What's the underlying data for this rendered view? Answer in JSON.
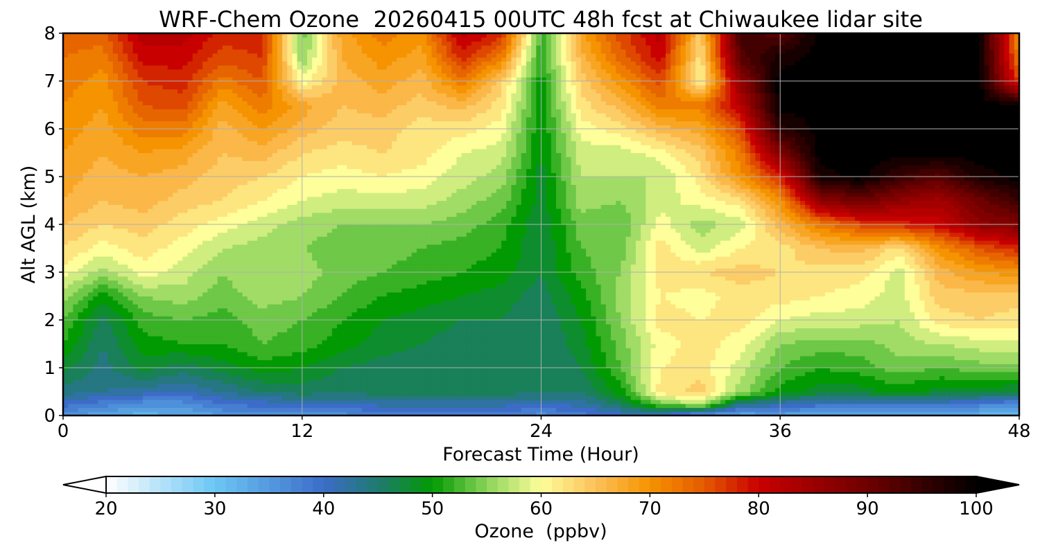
{
  "chart_data": {
    "type": "heatmap",
    "subtype": "filled-contour",
    "title": "WRF-Chem Ozone  20260415 00UTC 48h fcst at Chiwaukee lidar site",
    "xlabel": "Forecast Time (Hour)",
    "ylabel": "Alt AGL (km)",
    "xlim": [
      0,
      48
    ],
    "ylim": [
      0,
      8
    ],
    "xticks": [
      "0",
      "12",
      "24",
      "36",
      "48"
    ],
    "yticks": [
      "0",
      "1",
      "2",
      "3",
      "4",
      "5",
      "6",
      "7",
      "8"
    ],
    "grid": true,
    "colorbar": {
      "label": "Ozone  (ppbv)",
      "range": [
        20,
        100
      ],
      "ticks": [
        "20",
        "30",
        "40",
        "50",
        "60",
        "70",
        "80",
        "90",
        "100"
      ],
      "extend": "both",
      "stops": [
        {
          "v": 20,
          "c": "#ffffff"
        },
        {
          "v": 30,
          "c": "#6cc6f4"
        },
        {
          "v": 40,
          "c": "#3c6cc8"
        },
        {
          "v": 45,
          "c": "#1f7a6f"
        },
        {
          "v": 50,
          "c": "#029a02"
        },
        {
          "v": 55,
          "c": "#8ad45a"
        },
        {
          "v": 60,
          "c": "#fefe9a"
        },
        {
          "v": 65,
          "c": "#fcc05a"
        },
        {
          "v": 70,
          "c": "#f59300"
        },
        {
          "v": 75,
          "c": "#e45a00"
        },
        {
          "v": 80,
          "c": "#c80000"
        },
        {
          "v": 90,
          "c": "#6e0000"
        },
        {
          "v": 100,
          "c": "#000000"
        }
      ]
    },
    "x": [
      0,
      2,
      4,
      6,
      8,
      10,
      12,
      14,
      16,
      18,
      20,
      22,
      24,
      26,
      28,
      30,
      32,
      34,
      36,
      38,
      40,
      42,
      44,
      46,
      48
    ],
    "y": [
      0,
      0.25,
      0.5,
      1,
      1.5,
      2,
      2.5,
      3,
      3.5,
      4,
      4.5,
      5,
      5.5,
      6,
      6.5,
      7,
      7.5,
      8
    ],
    "ozone_ppbv": [
      [
        36,
        33,
        32,
        33,
        35,
        36,
        36,
        36,
        37,
        37,
        37,
        37,
        36,
        38,
        40,
        40,
        34,
        33,
        34,
        32,
        32,
        33,
        33,
        32,
        31
      ],
      [
        40,
        38,
        36,
        36,
        39,
        40,
        41,
        41,
        42,
        42,
        42,
        42,
        41,
        42,
        46,
        54,
        58,
        44,
        42,
        40,
        40,
        40,
        40,
        38,
        37
      ],
      [
        44,
        43,
        42,
        41,
        43,
        45,
        46,
        45,
        46,
        46,
        46,
        46,
        45,
        45,
        50,
        62,
        64,
        56,
        50,
        48,
        48,
        50,
        48,
        48,
        47
      ],
      [
        48,
        44,
        48,
        46,
        48,
        50,
        49,
        47,
        46,
        46,
        45,
        45,
        45,
        47,
        53,
        61,
        62,
        58,
        53,
        51,
        52,
        54,
        53,
        54,
        54
      ],
      [
        51,
        45,
        50,
        51,
        51,
        53,
        52,
        50,
        48,
        47,
        46,
        46,
        45,
        48,
        54,
        60,
        62,
        60,
        55,
        54,
        54,
        56,
        57,
        58,
        58
      ],
      [
        53,
        46,
        52,
        53,
        52,
        54,
        53,
        51,
        49,
        48,
        47,
        47,
        45,
        49,
        55,
        62,
        61,
        62,
        59,
        58,
        58,
        57,
        62,
        63,
        62
      ],
      [
        56,
        50,
        55,
        56,
        54,
        56,
        55,
        53,
        51,
        50,
        49,
        48,
        46,
        50,
        56,
        61,
        60,
        62,
        62,
        61,
        60,
        58,
        64,
        64,
        64
      ],
      [
        60,
        56,
        60,
        58,
        55,
        57,
        56,
        54,
        53,
        52,
        51,
        50,
        47,
        52,
        55,
        62,
        63,
        64,
        63,
        62,
        62,
        58,
        66,
        69,
        70
      ],
      [
        63,
        60,
        62,
        60,
        57,
        56,
        55,
        54,
        54,
        53,
        52,
        51,
        47,
        53,
        54,
        62,
        58,
        61,
        62,
        65,
        66,
        62,
        70,
        75,
        78
      ],
      [
        65,
        63,
        64,
        62,
        60,
        58,
        56,
        55,
        55,
        55,
        54,
        52,
        47,
        54,
        53,
        60,
        56,
        58,
        66,
        72,
        76,
        78,
        80,
        86,
        88
      ],
      [
        67,
        65,
        66,
        64,
        63,
        61,
        59,
        58,
        58,
        58,
        56,
        54,
        48,
        56,
        55,
        58,
        60,
        62,
        70,
        86,
        90,
        86,
        84,
        90,
        95
      ],
      [
        68,
        66,
        67,
        66,
        64,
        63,
        61,
        60,
        61,
        60,
        58,
        56,
        48,
        57,
        57,
        57,
        62,
        70,
        78,
        98,
        100,
        95,
        92,
        98,
        100
      ],
      [
        69,
        67,
        69,
        68,
        65,
        66,
        63,
        62,
        63,
        62,
        59,
        58,
        49,
        58,
        58,
        60,
        64,
        72,
        88,
        100,
        100,
        100,
        100,
        100,
        100
      ],
      [
        70,
        68,
        72,
        72,
        66,
        69,
        66,
        64,
        64,
        62,
        62,
        60,
        49,
        60,
        62,
        66,
        68,
        76,
        96,
        100,
        100,
        100,
        100,
        100,
        100
      ],
      [
        71,
        69,
        75,
        76,
        68,
        72,
        68,
        65,
        66,
        64,
        66,
        62,
        50,
        62,
        66,
        72,
        72,
        82,
        100,
        100,
        100,
        100,
        100,
        100,
        100
      ],
      [
        72,
        70,
        77,
        78,
        72,
        75,
        60,
        66,
        68,
        66,
        72,
        64,
        50,
        64,
        70,
        76,
        60,
        86,
        100,
        100,
        100,
        100,
        100,
        100,
        76
      ],
      [
        73,
        72,
        80,
        80,
        76,
        77,
        55,
        67,
        70,
        68,
        78,
        72,
        51,
        66,
        74,
        80,
        62,
        92,
        98,
        100,
        100,
        100,
        100,
        100,
        72
      ],
      [
        74,
        74,
        82,
        82,
        78,
        78,
        54,
        68,
        72,
        70,
        82,
        78,
        52,
        68,
        76,
        82,
        64,
        94,
        92,
        100,
        100,
        100,
        100,
        100,
        70
      ]
    ]
  }
}
